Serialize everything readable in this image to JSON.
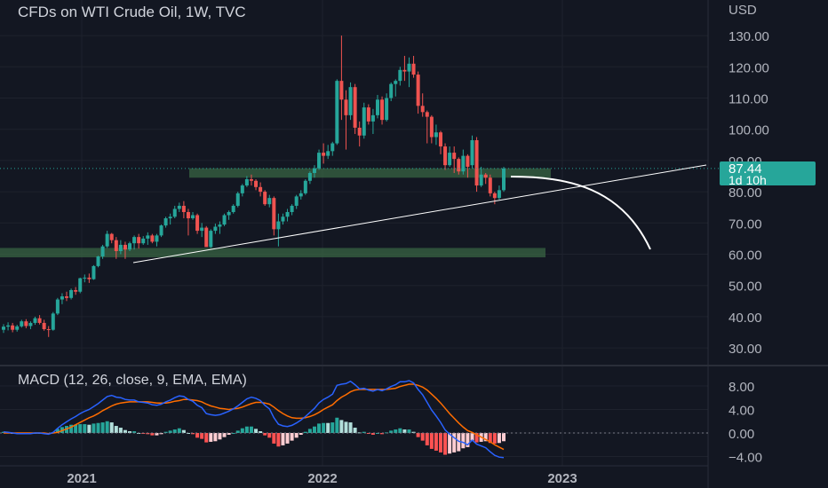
{
  "title": "CFDs on WTI Crude Oil, 1W, TVC",
  "currency": "USD",
  "price_badge": {
    "price": "87.44",
    "countdown": "1d 10h"
  },
  "macd_title": "MACD (12, 26, close, 9, EMA, EMA)",
  "colors": {
    "background": "#131722",
    "up": "#26a69a",
    "down": "#ef5350",
    "zone": "#3a6a44",
    "macd": "#2962ff",
    "signal": "#ff6d00",
    "text": "#b2b5be"
  },
  "chart_data": [
    {
      "type": "candlestick",
      "title": "CFDs on WTI Crude Oil, 1W, TVC",
      "y_axis": {
        "side": "right",
        "ticks": [
          30,
          40,
          50,
          60,
          70,
          80,
          90,
          100,
          110,
          120,
          130
        ],
        "tick_labels": [
          "30.00",
          "40.00",
          "50.00",
          "60.00",
          "70.00",
          "80.00",
          "90.00",
          "100.00",
          "110.00",
          "120.00",
          "130.00"
        ]
      },
      "x_axis": {
        "tick_labels": [
          "2021",
          "2022",
          "2023"
        ]
      },
      "last_price": 87.44,
      "horizontal_zones": [
        {
          "low": 84.5,
          "high": 87.5
        },
        {
          "low": 59.0,
          "high": 62.0
        }
      ],
      "annotations": [
        {
          "kind": "trendline",
          "from": {
            "x": "2021-03",
            "y": 57
          },
          "to": {
            "x": "2023-05",
            "y": 87
          }
        },
        {
          "kind": "curve-projection",
          "from": {
            "x": "2022-10",
            "y": 86
          },
          "to": {
            "x": "2023-03",
            "y": 62
          }
        }
      ],
      "ohlc": [
        [
          35.8,
          37.6,
          34.8,
          36.8
        ],
        [
          36.8,
          38.2,
          35.6,
          37.2
        ],
        [
          37.2,
          38.0,
          35.0,
          35.8
        ],
        [
          35.8,
          37.4,
          35.2,
          36.9
        ],
        [
          36.9,
          39.0,
          36.5,
          38.5
        ],
        [
          38.5,
          39.2,
          36.3,
          37.0
        ],
        [
          37.0,
          38.5,
          36.0,
          38.0
        ],
        [
          38.0,
          40.0,
          37.4,
          39.5
        ],
        [
          39.5,
          40.5,
          37.5,
          38.0
        ],
        [
          38.0,
          39.0,
          35.5,
          36.0
        ],
        [
          36.0,
          37.0,
          33.5,
          35.8
        ],
        [
          35.8,
          41.5,
          35.5,
          41.0
        ],
        [
          41.0,
          46.0,
          40.5,
          45.5
        ],
        [
          45.5,
          47.5,
          44.0,
          46.5
        ],
        [
          46.5,
          48.0,
          45.0,
          46.0
        ],
        [
          46.0,
          49.0,
          45.5,
          48.5
        ],
        [
          48.5,
          49.5,
          47.0,
          48.0
        ],
        [
          48.0,
          52.5,
          47.5,
          52.3
        ],
        [
          52.3,
          53.5,
          51.0,
          52.5
        ],
        [
          52.5,
          53.8,
          50.8,
          52.0
        ],
        [
          52.0,
          56.5,
          51.8,
          56.2
        ],
        [
          56.2,
          59.5,
          55.8,
          59.3
        ],
        [
          59.3,
          63.0,
          58.5,
          62.5
        ],
        [
          62.5,
          67.5,
          62.0,
          66.5
        ],
        [
          66.5,
          66.8,
          63.5,
          64.5
        ],
        [
          64.5,
          65.5,
          58.5,
          61.0
        ],
        [
          61.0,
          64.5,
          60.0,
          63.0
        ],
        [
          63.0,
          64.0,
          58.5,
          61.5
        ],
        [
          61.5,
          64.0,
          61.0,
          63.5
        ],
        [
          63.5,
          66.0,
          61.5,
          65.5
        ],
        [
          65.5,
          66.5,
          61.8,
          63.5
        ],
        [
          63.5,
          65.8,
          63.0,
          65.0
        ],
        [
          65.0,
          67.0,
          63.0,
          66.0
        ],
        [
          66.0,
          66.5,
          63.5,
          64.0
        ],
        [
          64.0,
          66.5,
          62.5,
          66.0
        ],
        [
          66.0,
          69.5,
          65.5,
          69.2
        ],
        [
          69.2,
          72.0,
          68.5,
          71.5
        ],
        [
          71.5,
          73.0,
          69.5,
          72.0
        ],
        [
          72.0,
          75.5,
          71.5,
          74.5
        ],
        [
          74.5,
          76.5,
          73.5,
          75.5
        ],
        [
          75.5,
          77.0,
          71.5,
          73.5
        ],
        [
          73.5,
          74.5,
          66.0,
          71.5
        ],
        [
          71.5,
          73.5,
          71.0,
          72.5
        ],
        [
          72.5,
          73.0,
          66.5,
          67.5
        ],
        [
          67.5,
          70.0,
          65.5,
          68.5
        ],
        [
          68.5,
          69.0,
          62.5,
          62.3
        ],
        [
          62.3,
          68.0,
          62.0,
          67.5
        ],
        [
          67.5,
          69.8,
          66.5,
          68.8
        ],
        [
          68.8,
          70.5,
          66.5,
          69.5
        ],
        [
          69.5,
          73.0,
          69.0,
          72.5
        ],
        [
          72.5,
          74.0,
          71.0,
          73.5
        ],
        [
          73.5,
          76.0,
          73.0,
          75.5
        ],
        [
          75.5,
          80.0,
          75.0,
          79.5
        ],
        [
          79.5,
          82.5,
          78.5,
          82.0
        ],
        [
          82.0,
          85.0,
          81.5,
          84.0
        ],
        [
          84.0,
          85.5,
          82.0,
          83.5
        ],
        [
          83.5,
          84.0,
          80.5,
          81.5
        ],
        [
          81.5,
          83.0,
          78.5,
          80.0
        ],
        [
          80.0,
          80.5,
          75.5,
          76.0
        ],
        [
          76.0,
          79.0,
          75.0,
          78.0
        ],
        [
          78.0,
          78.5,
          66.0,
          68.0
        ],
        [
          68.0,
          73.0,
          62.5,
          70.5
        ],
        [
          70.5,
          73.0,
          69.5,
          72.0
        ],
        [
          72.0,
          74.5,
          70.5,
          73.5
        ],
        [
          73.5,
          76.0,
          72.5,
          75.5
        ],
        [
          75.5,
          79.0,
          74.5,
          78.5
        ],
        [
          78.5,
          80.5,
          77.5,
          79.5
        ],
        [
          79.5,
          84.0,
          79.0,
          83.5
        ],
        [
          83.5,
          86.5,
          82.5,
          86.0
        ],
        [
          86.0,
          88.5,
          84.5,
          87.5
        ],
        [
          87.5,
          93.5,
          87.0,
          92.5
        ],
        [
          92.5,
          95.5,
          89.0,
          91.5
        ],
        [
          91.5,
          95.0,
          90.5,
          93.0
        ],
        [
          93.0,
          96.0,
          91.5,
          95.5
        ],
        [
          95.5,
          116.0,
          95.0,
          115.5
        ],
        [
          115.5,
          130.0,
          103.0,
          109.5
        ],
        [
          109.5,
          112.5,
          93.5,
          104.5
        ],
        [
          104.5,
          115.0,
          103.0,
          113.5
        ],
        [
          113.5,
          114.5,
          98.5,
          100.5
        ],
        [
          100.5,
          102.5,
          94.5,
          98.0
        ],
        [
          98.0,
          108.5,
          97.0,
          107.0
        ],
        [
          107.0,
          108.0,
          101.5,
          102.5
        ],
        [
          102.5,
          106.5,
          98.5,
          104.5
        ],
        [
          104.5,
          111.0,
          103.5,
          109.5
        ],
        [
          109.5,
          110.5,
          101.5,
          103.0
        ],
        [
          103.0,
          111.5,
          102.5,
          110.0
        ],
        [
          110.0,
          115.0,
          109.0,
          114.5
        ],
        [
          114.5,
          116.0,
          110.5,
          115.5
        ],
        [
          115.5,
          120.0,
          114.0,
          119.0
        ],
        [
          119.0,
          123.5,
          115.5,
          118.5
        ],
        [
          118.5,
          123.0,
          113.5,
          121.0
        ],
        [
          121.0,
          123.5,
          116.5,
          117.5
        ],
        [
          117.5,
          118.5,
          105.0,
          107.5
        ],
        [
          107.5,
          111.5,
          104.0,
          105.5
        ],
        [
          105.5,
          106.0,
          95.5,
          104.0
        ],
        [
          104.0,
          104.5,
          95.5,
          97.5
        ],
        [
          97.5,
          101.5,
          95.0,
          99.0
        ],
        [
          99.0,
          99.5,
          92.0,
          94.5
        ],
        [
          94.5,
          95.5,
          87.0,
          88.5
        ],
        [
          88.5,
          94.5,
          88.0,
          92.5
        ],
        [
          92.5,
          94.5,
          86.0,
          90.5
        ],
        [
          90.5,
          91.0,
          85.5,
          86.5
        ],
        [
          86.5,
          93.5,
          85.5,
          91.5
        ],
        [
          91.5,
          92.0,
          84.5,
          88.0
        ],
        [
          88.5,
          98.0,
          87.5,
          96.5
        ],
        [
          96.5,
          97.5,
          80.0,
          82.0
        ],
        [
          82.0,
          88.0,
          81.5,
          85.5
        ],
        [
          85.5,
          86.0,
          82.5,
          84.5
        ],
        [
          84.5,
          85.5,
          78.5,
          79.5
        ],
        [
          79.5,
          80.0,
          76.0,
          78.0
        ],
        [
          78.0,
          82.0,
          77.5,
          80.5
        ],
        [
          80.5,
          88.0,
          80.0,
          87.44
        ]
      ]
    },
    {
      "type": "line",
      "title": "MACD (12, 26, close, 9, EMA, EMA)",
      "y_axis": {
        "side": "right",
        "ticks": [
          -4,
          0,
          4,
          8
        ],
        "tick_labels": [
          "−4.00",
          "0.00",
          "4.00",
          "8.00"
        ]
      },
      "series": [
        {
          "kind": "macd",
          "values": [
            0.2,
            0.1,
            0.0,
            -0.1,
            -0.1,
            -0.1,
            -0.1,
            0.0,
            0.0,
            -0.1,
            -0.2,
            0.1,
            0.8,
            1.4,
            1.9,
            2.4,
            2.8,
            3.3,
            3.7,
            4.0,
            4.5,
            5.0,
            5.6,
            6.2,
            6.4,
            6.1,
            6.0,
            5.7,
            5.6,
            5.6,
            5.3,
            5.2,
            5.1,
            4.8,
            4.7,
            4.9,
            5.3,
            5.6,
            6.0,
            6.3,
            6.2,
            5.7,
            5.4,
            4.7,
            4.3,
            3.3,
            3.1,
            3.0,
            3.1,
            3.4,
            3.7,
            4.1,
            4.6,
            5.2,
            5.8,
            6.1,
            5.9,
            5.5,
            4.7,
            4.1,
            2.6,
            1.5,
            1.2,
            1.1,
            1.3,
            1.7,
            2.2,
            2.8,
            3.5,
            4.2,
            5.1,
            5.7,
            6.1,
            6.6,
            8.1,
            8.3,
            8.4,
            8.8,
            8.2,
            7.5,
            7.6,
            7.3,
            7.1,
            7.4,
            7.2,
            7.5,
            7.9,
            8.2,
            8.7,
            8.7,
            8.9,
            8.5,
            7.4,
            6.5,
            5.2,
            3.9,
            2.9,
            1.8,
            0.5,
            -0.2,
            -0.8,
            -1.4,
            -1.6,
            -2.0,
            -1.2,
            -1.9,
            -2.2,
            -2.5,
            -3.2,
            -3.8,
            -4.1,
            -4.2
          ]
        },
        {
          "kind": "signal",
          "values": [
            0.0,
            0.0,
            0.0,
            0.0,
            0.0,
            0.0,
            0.0,
            0.0,
            0.0,
            0.0,
            -0.1,
            0.0,
            0.1,
            0.4,
            0.7,
            1.0,
            1.4,
            1.8,
            2.2,
            2.6,
            2.9,
            3.3,
            3.8,
            4.2,
            4.6,
            4.9,
            5.1,
            5.2,
            5.3,
            5.3,
            5.3,
            5.3,
            5.3,
            5.2,
            5.1,
            5.1,
            5.1,
            5.2,
            5.4,
            5.5,
            5.7,
            5.7,
            5.6,
            5.5,
            5.3,
            4.9,
            4.6,
            4.4,
            4.2,
            4.1,
            4.0,
            4.1,
            4.2,
            4.4,
            4.7,
            5.0,
            5.2,
            5.2,
            5.1,
            4.9,
            4.4,
            3.8,
            3.3,
            2.9,
            2.6,
            2.5,
            2.5,
            2.6,
            2.8,
            3.1,
            3.5,
            4.0,
            4.4,
            4.8,
            5.5,
            6.1,
            6.5,
            7.0,
            7.3,
            7.4,
            7.4,
            7.4,
            7.4,
            7.4,
            7.4,
            7.4,
            7.5,
            7.6,
            7.9,
            8.1,
            8.3,
            8.3,
            8.1,
            7.8,
            7.3,
            6.6,
            5.9,
            5.1,
            4.2,
            3.3,
            2.5,
            1.7,
            1.0,
            0.4,
            0.1,
            -0.3,
            -0.7,
            -1.1,
            -1.5,
            -2.0,
            -2.4,
            -2.8
          ]
        }
      ],
      "histogram_colors": {
        "pos_rising": "#26a69a",
        "pos_falling": "#b2dfdb",
        "neg_falling": "#ff5252",
        "neg_rising": "#ffcdd2"
      }
    }
  ]
}
